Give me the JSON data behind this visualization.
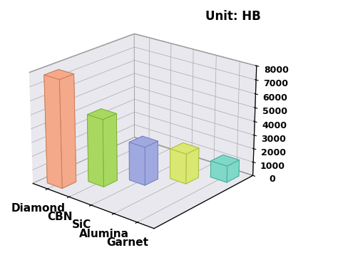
{
  "categories": [
    "Diamond",
    "CBN",
    "SiC",
    "Alumina",
    "Garnet"
  ],
  "values": [
    7800,
    4900,
    2800,
    2200,
    1200
  ],
  "bar_colors": [
    "#F4A98A",
    "#A8D860",
    "#A0A8E0",
    "#D8E870",
    "#80D8C8"
  ],
  "bar_edge_colors": [
    "#C87850",
    "#78B030",
    "#7080C0",
    "#B0B840",
    "#40A898"
  ],
  "ylabel": "Unit: HB",
  "ylim": [
    0,
    8000
  ],
  "yticks": [
    0,
    1000,
    2000,
    3000,
    4000,
    5000,
    6000,
    7000,
    8000
  ],
  "tick_fontsize": 9,
  "label_fontsize": 11,
  "unit_fontsize": 12,
  "background_color": "#ffffff",
  "figsize": [
    4.74,
    3.72
  ],
  "dpi": 100,
  "elev": 22,
  "azim": -50
}
